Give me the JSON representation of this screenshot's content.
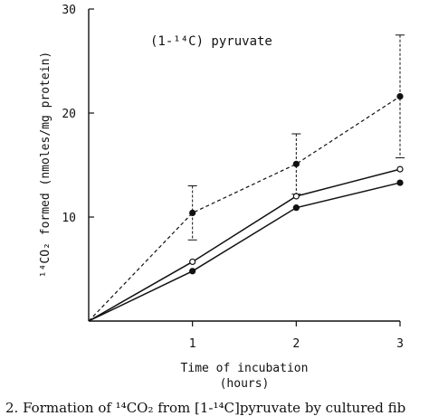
{
  "chart_data": {
    "type": "line",
    "annotation": "(1-¹⁴C) pyruvate",
    "ylabel": "¹⁴CO₂ formed (nmoles/mg protein)",
    "xlabel": "Time of incubation",
    "xlabel_unit": "(hours)",
    "x": [
      0,
      1,
      2,
      3
    ],
    "xticks": [
      "1",
      "2",
      "3"
    ],
    "xlim": [
      0,
      3
    ],
    "yticks": [
      "10",
      "20",
      "30"
    ],
    "ylim": [
      0,
      30
    ],
    "grid": false,
    "series": [
      {
        "style": "dashed",
        "marker": "filled-circle",
        "values": [
          0,
          10.4,
          15.1,
          21.6
        ],
        "error": [
          null,
          2.6,
          2.9,
          5.9
        ]
      },
      {
        "style": "solid",
        "marker": "open-circle",
        "values": [
          0,
          5.7,
          12.0,
          14.6
        ]
      },
      {
        "style": "solid",
        "marker": "filled-circle",
        "values": [
          0,
          4.8,
          10.9,
          13.3
        ]
      }
    ],
    "caption": "2. Formation of ¹⁴CO₂ from [1-¹⁴C]pyruvate by cultured fib"
  }
}
